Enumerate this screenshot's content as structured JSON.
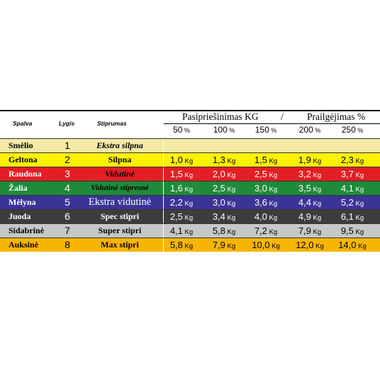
{
  "header": {
    "color_label": "Spalva",
    "level_label": "Lygis",
    "strength_label": "Stiprumas",
    "resistance_label": "Pasipriešinimas KG",
    "separator": "/",
    "elongation_label": "Prailgėjimas %",
    "percent_columns": [
      "50 %",
      "100 %",
      "150 %",
      "200 %",
      "250 %"
    ]
  },
  "chart_data": {
    "type": "table",
    "columns": [
      "Spalva",
      "Lygis",
      "Stiprumas",
      "50 %",
      "100 %",
      "150 %",
      "200 %",
      "250 %"
    ],
    "unit": "Kg",
    "rows": [
      {
        "color": "Smėlio",
        "level": "1",
        "strength": "Ekstra silpna",
        "values": []
      },
      {
        "color": "Geltona",
        "level": "2",
        "strength": "Silpna",
        "values": [
          "1,0",
          "1,3",
          "1,5",
          "1,9",
          "2,3"
        ]
      },
      {
        "color": "Raudona",
        "level": "3",
        "strength": "Vidutinė",
        "values": [
          "1,5",
          "2,0",
          "2,5",
          "3,2",
          "3,7"
        ]
      },
      {
        "color": "Žalia",
        "level": "4",
        "strength": "Vidutinė stipresnė",
        "values": [
          "1,6",
          "2,5",
          "3,0",
          "3,5",
          "4,1"
        ]
      },
      {
        "color": "Mėlyna",
        "level": "5",
        "strength": "Ekstra vidutinė",
        "values": [
          "2,2",
          "3,0",
          "3,6",
          "4,4",
          "5,2"
        ]
      },
      {
        "color": "Juoda",
        "level": "6",
        "strength": "Spec stipri",
        "values": [
          "2,5",
          "3,4",
          "4,0",
          "4,9",
          "6,1"
        ]
      },
      {
        "color": "Sidabrinė",
        "level": "7",
        "strength": "Super stipri",
        "values": [
          "4,1",
          "5,8",
          "7,2",
          "7,9",
          "9,5"
        ]
      },
      {
        "color": "Auksinė",
        "level": "8",
        "strength": "Max stipri",
        "values": [
          "5,8",
          "7,9",
          "10,0",
          "12,0",
          "14,0"
        ]
      }
    ]
  },
  "styles": [
    {
      "bg": "#f4e9a6",
      "fg": "#000000",
      "strength_fg": "#000000"
    },
    {
      "bg": "#fff200",
      "fg": "#000000",
      "strength_fg": "#000000"
    },
    {
      "bg": "#e31e25",
      "fg": "#ffffff",
      "strength_fg": "#000000"
    },
    {
      "bg": "#1f8b3a",
      "fg": "#ffffff",
      "strength_fg": "#000000"
    },
    {
      "bg": "#3b3496",
      "fg": "#ffffff",
      "strength_fg": "#ffffff"
    },
    {
      "bg": "#3c3c3c",
      "fg": "#ffffff",
      "strength_fg": "#ffffff"
    },
    {
      "bg": "#c6c7c9",
      "fg": "#000000",
      "strength_fg": "#000000"
    },
    {
      "bg": "#f7b500",
      "fg": "#000000",
      "strength_fg": "#000000"
    }
  ]
}
